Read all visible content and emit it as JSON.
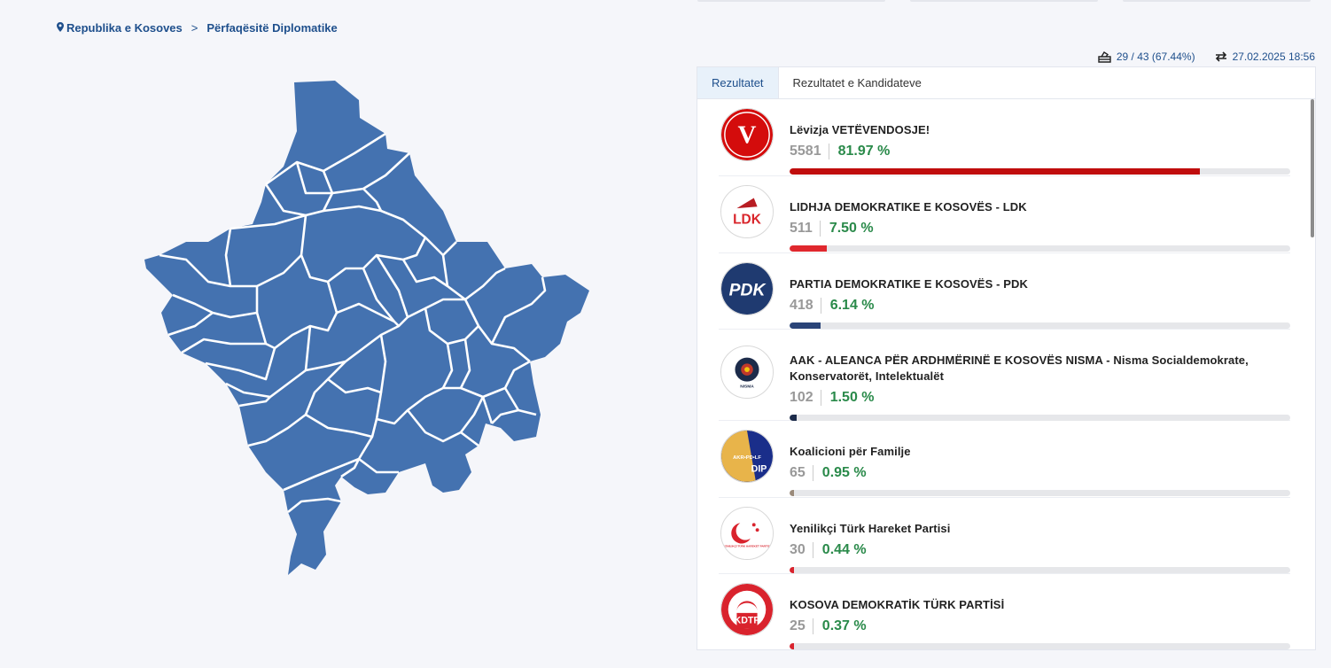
{
  "breadcrumb": {
    "root": "Republika e Kosoves",
    "separator": ">",
    "current": "Përfaqësitë Diplomatike"
  },
  "stats": {
    "stations": "29 / 43 (67.44%)",
    "updated": "27.02.2025 18:56"
  },
  "tabs": [
    {
      "label": "Rezultatet"
    },
    {
      "label": "Rezultatet e Kandidateve"
    }
  ],
  "map_color": "#4472b0",
  "parties": [
    {
      "name": "Lëvizja VETËVENDOSJE!",
      "votes": "5581",
      "percent": "81.97 %",
      "share": 81.97,
      "color": "#c00d0d",
      "logo_text": "V"
    },
    {
      "name": "LIDHJA DEMOKRATIKE E KOSOVËS - LDK",
      "votes": "511",
      "percent": "7.50 %",
      "share": 7.5,
      "color": "#e0282e",
      "logo_text": "LDK"
    },
    {
      "name": "PARTIA DEMOKRATIKE E KOSOVËS - PDK",
      "votes": "418",
      "percent": "6.14 %",
      "share": 6.14,
      "color": "#2a4478",
      "logo_text": "PDK"
    },
    {
      "name": "AAK - ALEANCA PËR ARDHMËRINË E KOSOVËS NISMA - Nisma Socialdemokrate, Konservatorët, Intelektualët",
      "votes": "102",
      "percent": "1.50 %",
      "share": 1.5,
      "color": "#1c2b4a",
      "logo_text": "NISMA"
    },
    {
      "name": "Koalicioni për Familje",
      "votes": "65",
      "percent": "0.95 %",
      "share": 0.95,
      "color": "#9a8a7a",
      "logo_text": "AKR•PD•LF"
    },
    {
      "name": "Yenilikçi Türk Hareket Partisi",
      "votes": "30",
      "percent": "0.44 %",
      "share": 0.44,
      "color": "#d9232d",
      "logo_text": "YENİLİKÇİ TÜRK HAREKET PARTİSİ"
    },
    {
      "name": "KOSOVA DEMOKRATİK TÜRK PARTİSİ",
      "votes": "25",
      "percent": "0.37 %",
      "share": 0.37,
      "color": "#d9232d",
      "logo_text": "KDTP"
    }
  ]
}
